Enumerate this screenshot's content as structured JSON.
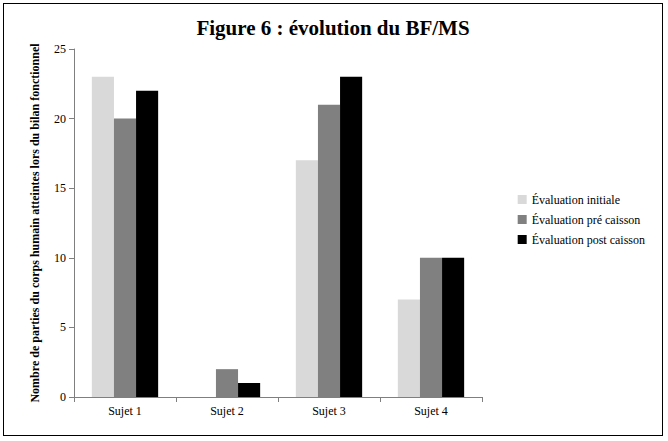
{
  "chart_data": {
    "type": "bar",
    "title": "Figure 6 : évolution du BF/MS",
    "y_label": "Nombre de parties du corps humain atteintes lors du bilan fonctionnel",
    "categories": [
      "Sujet 1",
      "Sujet 2",
      "Sujet 3",
      "Sujet 4"
    ],
    "series": [
      {
        "name": "Évaluation initiale",
        "color": "#d9d9d9",
        "values": [
          23,
          0,
          17,
          7
        ]
      },
      {
        "name": "Évaluation pré caisson",
        "color": "#808080",
        "values": [
          20,
          2,
          21,
          10
        ]
      },
      {
        "name": "Évaluation post caisson",
        "color": "#000000",
        "values": [
          22,
          1,
          23,
          10
        ]
      }
    ],
    "ylim": [
      0,
      25
    ],
    "yticks": [
      0,
      5,
      10,
      15,
      20,
      25
    ],
    "grid": false,
    "legend": "right"
  }
}
